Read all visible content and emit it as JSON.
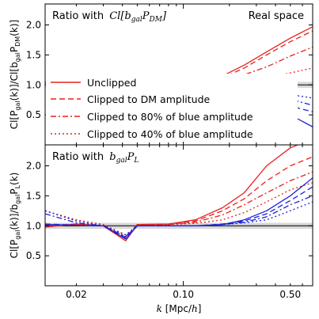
{
  "chart_data": [
    {
      "type": "line",
      "panel": "top",
      "title": "Ratio with Cl[b_gal P_DM]",
      "title_prefix": "Ratio with",
      "title_math": "Cl[b",
      "title_sub1": "gal",
      "title_math2": "P",
      "title_sub2": "DM",
      "title_math3": "]",
      "annotation": "Real space",
      "ylabel": "Cl[P_gal(k)]/Cl[b_gal P_DM(k)]",
      "ylabel_parts": {
        "a": "Cl[P",
        "a_sub": "gal",
        "b": "(k)]/Cl[b",
        "b_sub": "gal",
        "c": "P",
        "c_sub": "DM",
        "d": "(k)]"
      },
      "xscale": "log",
      "xlim": [
        0.0125,
        0.7
      ],
      "ylim": [
        0.0,
        2.35
      ],
      "yticks": [
        0.5,
        1.0,
        1.5,
        2.0
      ],
      "ytick_labels": [
        "0.5",
        "1.0",
        "1.5",
        "2.0"
      ],
      "band": [
        0.95,
        1.05
      ],
      "legend_position": "center-left",
      "legend": [
        {
          "label": "Unclipped",
          "style": "solid"
        },
        {
          "label": "Clipped to DM amplitude",
          "style": "dashed"
        },
        {
          "label": "Clipped to 80% of blue amplitude",
          "style": "dashdot"
        },
        {
          "label": "Clipped to 40% of blue amplitude",
          "style": "dotted"
        }
      ],
      "series": [
        {
          "color": "red",
          "style": "solid",
          "x": [
            0.0125,
            0.02,
            0.03,
            0.05,
            0.08,
            0.12,
            0.18,
            0.25,
            0.35,
            0.5,
            0.7
          ],
          "y": [
            1.0,
            1.0,
            1.0,
            1.0,
            1.01,
            1.05,
            1.15,
            1.33,
            1.55,
            1.78,
            1.97
          ]
        },
        {
          "color": "red",
          "style": "dashed",
          "x": [
            0.0125,
            0.02,
            0.03,
            0.05,
            0.08,
            0.12,
            0.18,
            0.25,
            0.35,
            0.5,
            0.7
          ],
          "y": [
            1.0,
            1.0,
            1.0,
            1.0,
            1.0,
            1.03,
            1.12,
            1.28,
            1.5,
            1.72,
            1.9
          ]
        },
        {
          "color": "red",
          "style": "dashdot",
          "x": [
            0.0125,
            0.02,
            0.03,
            0.05,
            0.08,
            0.12,
            0.18,
            0.25,
            0.35,
            0.5,
            0.7
          ],
          "y": [
            1.0,
            1.0,
            1.0,
            1.0,
            1.0,
            1.02,
            1.07,
            1.17,
            1.3,
            1.48,
            1.63
          ]
        },
        {
          "color": "red",
          "style": "dotted",
          "x": [
            0.0125,
            0.02,
            0.03,
            0.05,
            0.08,
            0.12,
            0.18,
            0.25,
            0.35,
            0.5,
            0.7
          ],
          "y": [
            1.0,
            1.0,
            1.0,
            1.0,
            1.0,
            1.0,
            1.02,
            1.06,
            1.12,
            1.2,
            1.28
          ]
        },
        {
          "color": "blue",
          "style": "solid",
          "x": [
            0.0125,
            0.02,
            0.03,
            0.05,
            0.08,
            0.12,
            0.18,
            0.25,
            0.35,
            0.5,
            0.7
          ],
          "y": [
            1.04,
            1.02,
            1.01,
            1.0,
            0.99,
            0.98,
            0.94,
            0.86,
            0.72,
            0.5,
            0.3
          ]
        },
        {
          "color": "blue",
          "style": "dashed",
          "x": [
            0.0125,
            0.02,
            0.03,
            0.05,
            0.08,
            0.12,
            0.18,
            0.25,
            0.35,
            0.5,
            0.7
          ],
          "y": [
            1.04,
            1.02,
            1.01,
            1.0,
            0.99,
            0.98,
            0.95,
            0.9,
            0.8,
            0.65,
            0.55
          ]
        },
        {
          "color": "blue",
          "style": "dashdot",
          "x": [
            0.0125,
            0.02,
            0.03,
            0.05,
            0.08,
            0.12,
            0.18,
            0.25,
            0.35,
            0.5,
            0.7
          ],
          "y": [
            1.04,
            1.02,
            1.01,
            1.0,
            0.99,
            0.98,
            0.96,
            0.92,
            0.86,
            0.76,
            0.66
          ]
        },
        {
          "color": "blue",
          "style": "dotted",
          "x": [
            0.0125,
            0.02,
            0.03,
            0.05,
            0.08,
            0.12,
            0.18,
            0.25,
            0.35,
            0.5,
            0.7
          ],
          "y": [
            1.04,
            1.02,
            1.01,
            1.0,
            1.0,
            0.99,
            0.98,
            0.95,
            0.9,
            0.84,
            0.78
          ]
        }
      ]
    },
    {
      "type": "line",
      "panel": "bottom",
      "title": "Ratio with b_gal P_L",
      "title_prefix": "Ratio with",
      "title_math": "b",
      "title_sub1": "gal",
      "title_math2": "P",
      "title_sub2": "L",
      "ylabel": "Cl[P_gal(k)]/b_gal P_L(k)",
      "ylabel_parts": {
        "a": "Cl[P",
        "a_sub": "gal",
        "b": "(k)]/b",
        "b_sub": "gal",
        "c": "P",
        "c_sub": "L",
        "d": "(k)"
      },
      "xlabel": "k [Mpc/h]",
      "xlabel_k": "k",
      "xlabel_rest": " [Mpc/",
      "xlabel_h": "h",
      "xlabel_end": "]",
      "xscale": "log",
      "xlim": [
        0.0125,
        0.7
      ],
      "ylim": [
        0.0,
        2.35
      ],
      "yticks": [
        0.5,
        1.0,
        1.5,
        2.0
      ],
      "ytick_labels": [
        "0.5",
        "1.0",
        "1.5",
        "2.0"
      ],
      "xticks": [
        0.02,
        0.1,
        0.5
      ],
      "xtick_labels": [
        "0.02",
        "0.10",
        "0.50"
      ],
      "band": [
        0.95,
        1.05
      ],
      "series": [
        {
          "color": "red",
          "style": "solid",
          "x": [
            0.0125,
            0.02,
            0.03,
            0.042,
            0.05,
            0.08,
            0.12,
            0.18,
            0.25,
            0.35,
            0.5,
            0.7
          ],
          "y": [
            0.98,
            1.03,
            1.0,
            0.75,
            1.02,
            1.03,
            1.1,
            1.3,
            1.55,
            2.0,
            2.3,
            2.45
          ]
        },
        {
          "color": "red",
          "style": "dashed",
          "x": [
            0.0125,
            0.02,
            0.03,
            0.042,
            0.05,
            0.08,
            0.12,
            0.18,
            0.25,
            0.35,
            0.5,
            0.7
          ],
          "y": [
            1.0,
            1.03,
            1.0,
            0.8,
            1.02,
            1.02,
            1.08,
            1.25,
            1.45,
            1.75,
            2.0,
            2.15
          ]
        },
        {
          "color": "red",
          "style": "dashdot",
          "x": [
            0.0125,
            0.02,
            0.03,
            0.042,
            0.05,
            0.08,
            0.12,
            0.18,
            0.25,
            0.35,
            0.5,
            0.7
          ],
          "y": [
            1.0,
            1.02,
            1.0,
            0.82,
            1.02,
            1.02,
            1.06,
            1.18,
            1.35,
            1.55,
            1.75,
            1.9
          ]
        },
        {
          "color": "red",
          "style": "dotted",
          "x": [
            0.0125,
            0.02,
            0.03,
            0.042,
            0.05,
            0.08,
            0.12,
            0.18,
            0.25,
            0.35,
            0.5,
            0.7
          ],
          "y": [
            1.25,
            1.1,
            1.02,
            0.85,
            1.0,
            1.02,
            1.04,
            1.1,
            1.22,
            1.4,
            1.6,
            1.72
          ]
        },
        {
          "color": "blue",
          "style": "solid",
          "x": [
            0.0125,
            0.02,
            0.03,
            0.042,
            0.05,
            0.08,
            0.12,
            0.18,
            0.25,
            0.35,
            0.5,
            0.7
          ],
          "y": [
            1.02,
            1.01,
            1.0,
            0.78,
            1.0,
            1.0,
            1.0,
            1.02,
            1.1,
            1.25,
            1.5,
            1.8
          ]
        },
        {
          "color": "blue",
          "style": "dashed",
          "x": [
            0.0125,
            0.02,
            0.03,
            0.042,
            0.05,
            0.08,
            0.12,
            0.18,
            0.25,
            0.35,
            0.5,
            0.7
          ],
          "y": [
            1.03,
            1.01,
            1.0,
            0.8,
            1.0,
            1.0,
            1.0,
            1.03,
            1.08,
            1.2,
            1.42,
            1.65
          ]
        },
        {
          "color": "blue",
          "style": "dashdot",
          "x": [
            0.0125,
            0.02,
            0.03,
            0.042,
            0.05,
            0.08,
            0.12,
            0.18,
            0.25,
            0.35,
            0.5,
            0.7
          ],
          "y": [
            1.2,
            1.05,
            1.0,
            0.82,
            1.0,
            1.0,
            1.0,
            1.02,
            1.06,
            1.15,
            1.35,
            1.5
          ]
        },
        {
          "color": "blue",
          "style": "dotted",
          "x": [
            0.0125,
            0.02,
            0.03,
            0.042,
            0.05,
            0.08,
            0.12,
            0.18,
            0.25,
            0.35,
            0.5,
            0.7
          ],
          "y": [
            1.25,
            1.08,
            1.0,
            0.85,
            1.0,
            1.0,
            1.0,
            1.02,
            1.05,
            1.1,
            1.25,
            1.4
          ]
        }
      ]
    }
  ],
  "colors": {
    "red": "#e8201c",
    "blue": "#1a23d8",
    "band": "#d8d8d8"
  }
}
